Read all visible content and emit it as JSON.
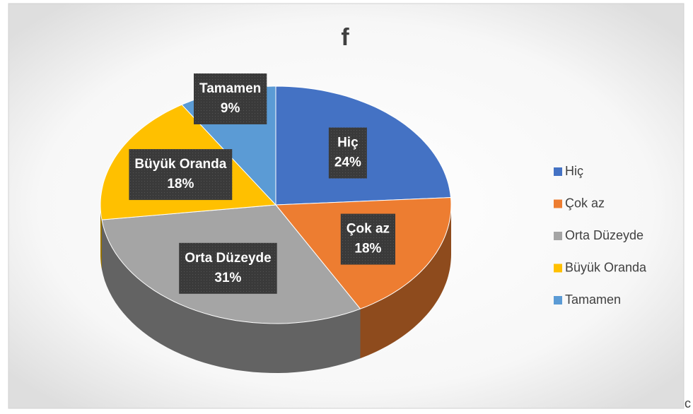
{
  "chart_data": {
    "type": "pie3d",
    "title": "f",
    "categories": [
      "Hiç",
      "Çok az",
      "Orta Düzeyde",
      "Büyük Oranda",
      "Tamamen"
    ],
    "values": [
      24,
      18,
      31,
      18,
      9
    ],
    "value_labels": [
      "24%",
      "18%",
      "31%",
      "18%",
      "9%"
    ],
    "colors": [
      "#4472c4",
      "#ed7d31",
      "#a5a5a5",
      "#ffc000",
      "#5b9bd5"
    ],
    "legend": "right"
  },
  "edge_text": "c"
}
